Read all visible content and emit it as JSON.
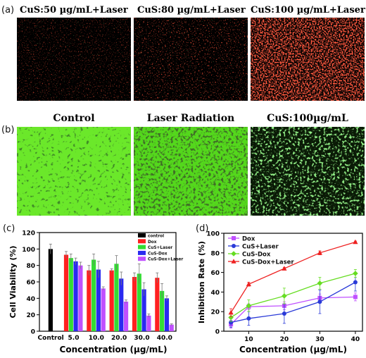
{
  "panels": {
    "a": {
      "label": "(a)",
      "titles": [
        "CuS:50 µg/mL+Laser",
        "CuS:80 µg/mL+Laser",
        "CuS:100 µg/mL+Laser"
      ]
    },
    "b": {
      "label": "(b)",
      "titles": [
        "Control",
        "Laser Radiation",
        "CuS:100µg/mL"
      ]
    },
    "c": {
      "label": "(c)"
    },
    "d": {
      "label": "(d)"
    }
  },
  "colors": {
    "control": "#000000",
    "dox": "#ff2020",
    "cus_laser": "#33dd33",
    "cus_dox": "#2a2af0",
    "cus_dox_laser": "#c050ff",
    "d_dox": "#c050ff",
    "d_cus_laser": "#2a3ad8",
    "d_cus_dox": "#66dd22",
    "d_cus_dox_laser": "#ee2020"
  },
  "chart_data": [
    {
      "type": "bar",
      "panel": "c",
      "xlabel": "Concentration (μg/mL)",
      "ylabel": "Cell Viability (%)",
      "ylim": [
        0,
        120
      ],
      "yticks": [
        0,
        20,
        40,
        60,
        80,
        100,
        120
      ],
      "categories": [
        "Control",
        "5.0",
        "10.0",
        "20.0",
        "30.0",
        "40.0"
      ],
      "legend_position": "top-right",
      "series": [
        {
          "name": "control",
          "values": [
            100,
            null,
            null,
            null,
            null,
            null
          ],
          "errors": [
            6,
            null,
            null,
            null,
            null,
            null
          ]
        },
        {
          "name": "Dox",
          "values": [
            null,
            93,
            74,
            74,
            66,
            65
          ],
          "errors": [
            null,
            4,
            6,
            2,
            5,
            6
          ]
        },
        {
          "name": "CuS+Laser",
          "values": [
            null,
            89,
            87,
            82,
            70,
            49
          ],
          "errors": [
            null,
            5,
            7,
            10,
            12,
            9
          ]
        },
        {
          "name": "CuS-Dox",
          "values": [
            null,
            85,
            75,
            64,
            51,
            40
          ],
          "errors": [
            null,
            4,
            10,
            8,
            8,
            3
          ]
        },
        {
          "name": "CuS-Dox+Laser",
          "values": [
            null,
            80,
            52,
            36,
            19,
            8
          ],
          "errors": [
            null,
            4,
            2,
            2,
            2,
            1
          ]
        }
      ]
    },
    {
      "type": "line",
      "panel": "d",
      "xlabel": "Concentration (μg/mL)",
      "ylabel": "Inhibition Rate (%)",
      "xlim": [
        3,
        42
      ],
      "ylim": [
        0,
        100
      ],
      "xticks": [
        10,
        20,
        30,
        40
      ],
      "yticks": [
        0,
        20,
        40,
        60,
        80,
        100
      ],
      "legend_position": "top-left",
      "x": [
        5,
        10,
        20,
        30,
        40
      ],
      "series": [
        {
          "name": "Dox",
          "values": [
            7,
            25,
            26,
            34,
            35
          ],
          "errors": [
            4,
            3,
            4,
            4,
            4
          ]
        },
        {
          "name": "CuS+Laser",
          "values": [
            9,
            13,
            18,
            30,
            50
          ],
          "errors": [
            5,
            7,
            10,
            12,
            9
          ]
        },
        {
          "name": "CuS-Dox",
          "values": [
            14,
            26,
            36,
            49,
            59
          ],
          "errors": [
            4,
            6,
            8,
            6,
            4
          ]
        },
        {
          "name": "CuS-Dox+Laser",
          "values": [
            19,
            48,
            64,
            80,
            91
          ],
          "errors": [
            4,
            2,
            1,
            2,
            1
          ]
        }
      ]
    }
  ]
}
